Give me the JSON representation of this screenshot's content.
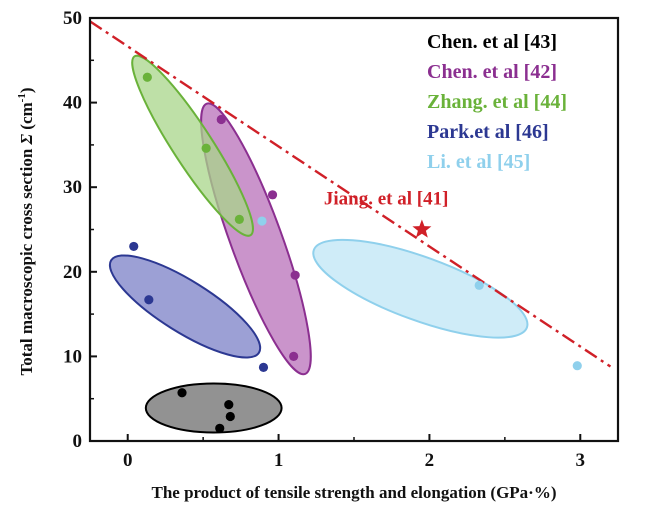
{
  "chart_data": {
    "type": "scatter",
    "xlabel": "The product of tensile strength and elongation (GPa·%)",
    "ylabel_prefix": "Total macroscopic cross section ",
    "ylabel_symbol": "Σ",
    "ylabel_unit_open": " (cm",
    "ylabel_unit_exp": "-1",
    "ylabel_unit_close": ")",
    "xlim": [
      -0.25,
      3.25
    ],
    "ylim": [
      0,
      50
    ],
    "xticks": [
      0,
      1,
      2,
      3
    ],
    "yticks": [
      0,
      10,
      20,
      30,
      40,
      50
    ],
    "grid": false,
    "legend_position": "top-right",
    "series": [
      {
        "name": "Chen. et al [43]",
        "color": "#000000",
        "fill": "#6e6e6e",
        "points": [
          [
            0.36,
            5.7
          ],
          [
            0.61,
            1.5
          ],
          [
            0.67,
            4.3
          ],
          [
            0.68,
            2.9
          ]
        ],
        "ellipse": {
          "cx": 0.57,
          "cy": 3.9,
          "rx": 0.45,
          "ry": 2.9,
          "angle_deg": 0
        }
      },
      {
        "name": "Chen. et al [42]",
        "color": "#8b2f90",
        "fill": "#b870b9",
        "points": [
          [
            0.62,
            38.0
          ],
          [
            0.96,
            29.1
          ],
          [
            1.11,
            19.6
          ],
          [
            1.1,
            10.0
          ]
        ],
        "ellipse": {
          "cx": 0.85,
          "cy": 23.9,
          "rx": 0.17,
          "ry": 17.0,
          "angle_deg": -20
        }
      },
      {
        "name": "Zhang. et al [44]",
        "color": "#6ab23a",
        "fill": "#a8d68a",
        "points": [
          [
            0.13,
            43.0
          ],
          [
            0.52,
            34.6
          ],
          [
            0.74,
            26.2
          ]
        ],
        "ellipse": {
          "cx": 0.43,
          "cy": 34.9,
          "rx": 0.13,
          "ry": 12.6,
          "angle_deg": -33
        }
      },
      {
        "name": "Park.et al [46]",
        "color": "#2c3892",
        "fill": "#7b80c7",
        "points": [
          [
            0.04,
            23.0
          ],
          [
            0.14,
            16.7
          ],
          [
            0.9,
            8.7
          ]
        ],
        "ellipse": {
          "cx": 0.38,
          "cy": 15.9,
          "rx": 0.17,
          "ry": 10.3,
          "angle_deg": -58
        }
      },
      {
        "name": "Li. et al [45]",
        "color": "#8fd0ec",
        "fill": "#bfe5f5",
        "points": [
          [
            0.89,
            26.0
          ],
          [
            2.33,
            18.4
          ],
          [
            2.98,
            8.9
          ]
        ],
        "ellipse": {
          "cx": 1.94,
          "cy": 18.0,
          "rx": 0.21,
          "ry": 13.4,
          "angle_deg": -70
        }
      }
    ],
    "trend_line": {
      "style": "dash-dot",
      "color": "#d02028",
      "from": [
        -0.25,
        49.6
      ],
      "to": [
        3.2,
        8.8
      ]
    },
    "highlight": {
      "name": "Jiang. et al [41]",
      "label": "Jiang. et al [41]",
      "color": "#d02028",
      "point": [
        1.95,
        25.0
      ],
      "marker": "star"
    }
  }
}
